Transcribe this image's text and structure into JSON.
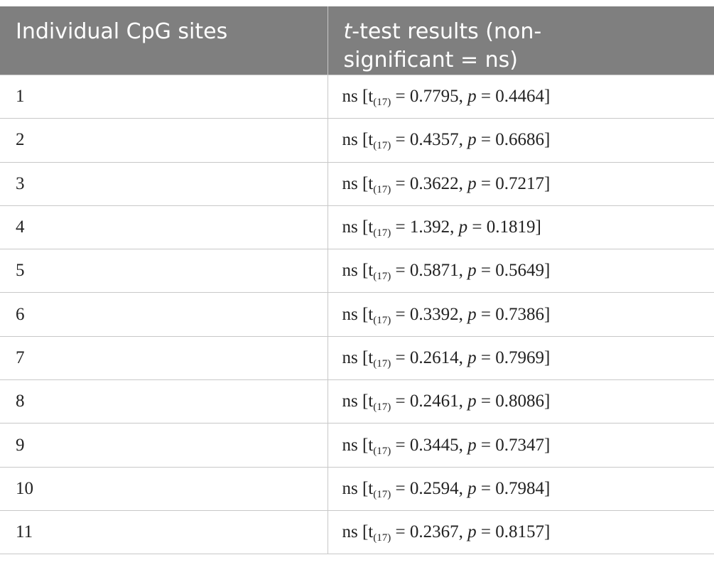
{
  "table": {
    "headers": {
      "col1": "Individual CpG sites",
      "col2_italic": "t",
      "col2_line1_rest": "-test results (non-",
      "col2_line2": "significant = ns)"
    },
    "rows": [
      {
        "site": "1",
        "label": "ns [t",
        "df": "(17)",
        "eq": " = 0.7795, ",
        "p": "p",
        "pval": " = 0.4464]"
      },
      {
        "site": "2",
        "label": "ns [t",
        "df": "(17)",
        "eq": " = 0.4357, ",
        "p": "p",
        "pval": " = 0.6686]"
      },
      {
        "site": "3",
        "label": "ns [t",
        "df": "(17)",
        "eq": " = 0.3622, ",
        "p": "p",
        "pval": " = 0.7217]"
      },
      {
        "site": "4",
        "label": "ns [t",
        "df": "(17)",
        "eq": " = 1.392, ",
        "p": "p",
        "pval": " = 0.1819]"
      },
      {
        "site": "5",
        "label": "ns [t",
        "df": "(17)",
        "eq": " = 0.5871, ",
        "p": "p",
        "pval": " = 0.5649]"
      },
      {
        "site": "6",
        "label": "ns [t",
        "df": "(17)",
        "eq": " = 0.3392, ",
        "p": "p",
        "pval": " = 0.7386]"
      },
      {
        "site": "7",
        "label": "ns [t",
        "df": "(17)",
        "eq": " = 0.2614, ",
        "p": "p",
        "pval": " = 0.7969]"
      },
      {
        "site": "8",
        "label": "ns [t",
        "df": "(17)",
        "eq": " = 0.2461, ",
        "p": "p",
        "pval": " = 0.8086]"
      },
      {
        "site": "9",
        "label": "ns [t",
        "df": "(17)",
        "eq": " = 0.3445, ",
        "p": "p",
        "pval": " = 0.7347]"
      },
      {
        "site": "10",
        "label": "ns [t",
        "df": "(17)",
        "eq": " = 0.2594, ",
        "p": "p",
        "pval": " = 0.7984]"
      },
      {
        "site": "11",
        "label": "ns [t",
        "df": "(17)",
        "eq": " = 0.2367, ",
        "p": "p",
        "pval": " = 0.8157]"
      }
    ],
    "colors": {
      "header_bg": "#7f7f7f",
      "header_text": "#ffffff",
      "grid": "#c8c8c8"
    }
  }
}
